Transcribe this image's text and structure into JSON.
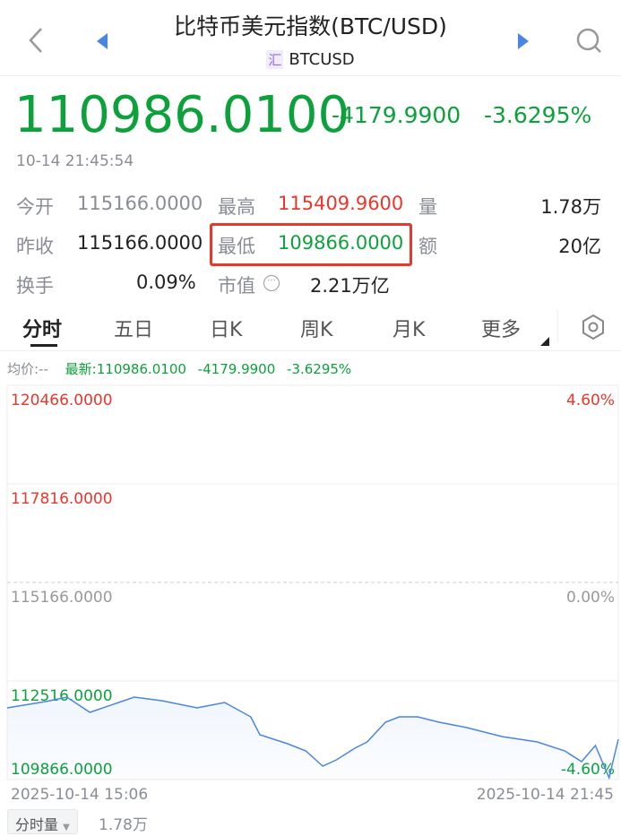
{
  "header": {
    "title": "比特币美元指数(BTC/USD)",
    "tag": "汇",
    "symbol": "BTCUSD"
  },
  "quote": {
    "price": "110986.0100",
    "change": "-4179.9900",
    "change_pct": "-3.6295%",
    "time": "10-14 21:45:54"
  },
  "stats": {
    "open_label": "今开",
    "open": "115166.0000",
    "high_label": "最高",
    "high": "115409.9600",
    "vol_label": "量",
    "vol": "1.78万",
    "prev_label": "昨收",
    "prev": "115166.0000",
    "low_label": "最低",
    "low": "109866.0000",
    "amt_label": "额",
    "amt": "20亿",
    "turnover_label": "换手",
    "turnover": "0.09%",
    "mcap_label": "市值",
    "mcap": "2.21万亿"
  },
  "tabs": [
    {
      "label": "分时"
    },
    {
      "label": "五日"
    },
    {
      "label": "日K"
    },
    {
      "label": "周K"
    },
    {
      "label": "月K"
    },
    {
      "label": "更多"
    }
  ],
  "chart_info": {
    "avg": "均价:--",
    "latest": "最新:110986.0100",
    "change": "-4179.9900",
    "pct": "-3.6295%"
  },
  "colors": {
    "up": "#e8372c",
    "down": "#0da13c",
    "line": "#4a86e0",
    "highlight_box": "#e8372c"
  },
  "chart_data": {
    "type": "line",
    "y_ticks": [
      "120466.0000",
      "117816.0000",
      "115166.0000",
      "112516.0000",
      "109866.0000"
    ],
    "pct_ticks": [
      "4.60%",
      "0.00%",
      "-4.60%"
    ],
    "ylim": [
      109866,
      120466
    ],
    "x_start": "2025-10-14 15:06",
    "x_end": "2025-10-14 21:45",
    "points": [
      [
        "15:06",
        111794
      ],
      [
        "15:31",
        111962
      ],
      [
        "15:45",
        112083
      ],
      [
        "16:00",
        111673
      ],
      [
        "16:29",
        112083
      ],
      [
        "16:47",
        111986
      ],
      [
        "17:10",
        111794
      ],
      [
        "17:28",
        111938
      ],
      [
        "17:45",
        111553
      ],
      [
        "17:51",
        111071
      ],
      [
        "18:09",
        110830
      ],
      [
        "18:21",
        110637
      ],
      [
        "18:32",
        110228
      ],
      [
        "18:41",
        110396
      ],
      [
        "18:53",
        110709
      ],
      [
        "19:01",
        110878
      ],
      [
        "19:13",
        111408
      ],
      [
        "19:22",
        111553
      ],
      [
        "19:34",
        111553
      ],
      [
        "19:48",
        111408
      ],
      [
        "20:06",
        111264
      ],
      [
        "20:29",
        111023
      ],
      [
        "20:52",
        110878
      ],
      [
        "21:10",
        110637
      ],
      [
        "21:21",
        110348
      ],
      [
        "21:30",
        110782
      ],
      [
        "21:39",
        109915
      ],
      [
        "21:45",
        110951
      ]
    ]
  },
  "volume": {
    "label": "分时量",
    "value": "1.78万"
  }
}
